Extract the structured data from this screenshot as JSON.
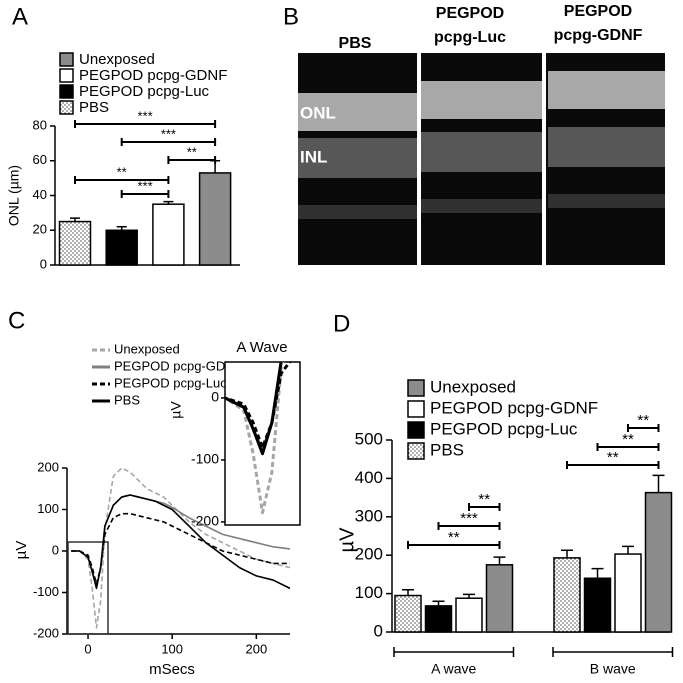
{
  "chart_data": [
    {
      "type": "bar",
      "panel": "A",
      "ylabel": "ONL (µm)",
      "categories": [
        "PBS",
        "PEGPOD pcpg-Luc",
        "PEGPOD pcpg-GDNF",
        "Unexposed"
      ],
      "values": [
        25,
        20,
        35,
        53
      ],
      "errors": [
        2,
        2,
        1.5,
        7
      ],
      "colors": [
        "#ffffff",
        "#000000",
        "#ffffff",
        "#8c8c8c"
      ],
      "dotted": [
        true,
        false,
        false,
        false
      ],
      "ylim": [
        0,
        80
      ],
      "yticks": [
        0,
        20,
        40,
        60,
        80
      ],
      "significance": [
        "***",
        "***",
        "**",
        "**",
        "***"
      ]
    },
    {
      "type": "image",
      "panel": "B",
      "column_labels": [
        "PBS",
        "PEGPOD pcpg-Luc",
        "PEGPOD pcpg-GDNF"
      ],
      "layer_labels": [
        "ONL",
        "INL"
      ]
    },
    {
      "type": "line",
      "panel": "C",
      "xlabel": "mSecs",
      "ylabel": "µV",
      "x": [
        -20,
        -10,
        0,
        5,
        10,
        15,
        20,
        30,
        40,
        50,
        60,
        70,
        80,
        90,
        100,
        120,
        140,
        160,
        180,
        200,
        220,
        240
      ],
      "series": [
        {
          "name": "Unexposed",
          "color": "#a6a6a6",
          "dashed": true,
          "values": [
            0,
            0,
            -20,
            -90,
            -185,
            -120,
            50,
            180,
            200,
            190,
            170,
            150,
            140,
            130,
            110,
            70,
            40,
            20,
            0,
            -20,
            -30,
            -40
          ]
        },
        {
          "name": "PEGPOD pcpg-GDNF",
          "color": "#808080",
          "dashed": false,
          "values": [
            0,
            0,
            -15,
            -50,
            -85,
            -40,
            60,
            110,
            130,
            135,
            130,
            125,
            120,
            115,
            105,
            80,
            60,
            40,
            30,
            20,
            10,
            5
          ]
        },
        {
          "name": "PEGPOD pcpg-Luc",
          "color": "#000000",
          "dashed": true,
          "values": [
            0,
            0,
            -10,
            -40,
            -80,
            -40,
            40,
            80,
            90,
            90,
            85,
            80,
            75,
            70,
            60,
            40,
            20,
            0,
            -10,
            -20,
            -30,
            -30
          ]
        },
        {
          "name": "PBS",
          "color": "#000000",
          "dashed": false,
          "values": [
            0,
            0,
            -15,
            -50,
            -90,
            -40,
            60,
            110,
            130,
            135,
            130,
            125,
            120,
            110,
            100,
            60,
            20,
            -10,
            -40,
            -60,
            -70,
            -90
          ]
        }
      ],
      "xlim": [
        -25,
        240
      ],
      "xticks": [
        0,
        100,
        200
      ],
      "ylim": [
        -200,
        200
      ],
      "yticks": [
        -200,
        -100,
        0,
        100,
        200
      ],
      "inset": {
        "title": "A Wave",
        "ylabel": "µV",
        "xlim": [
          -10,
          30
        ],
        "ylim": [
          -205,
          58
        ],
        "yticks": [
          0,
          -100,
          -200
        ]
      }
    },
    {
      "type": "grouped_bar",
      "panel": "D",
      "ylabel": "µV",
      "categories": [
        "A wave",
        "B wave"
      ],
      "series": [
        {
          "name": "PBS",
          "color": "#ffffff",
          "dotted": true,
          "values": [
            95,
            193
          ],
          "errors": [
            15,
            20
          ]
        },
        {
          "name": "PEGPOD pcpg-Luc",
          "color": "#000000",
          "dotted": false,
          "values": [
            68,
            140
          ],
          "errors": [
            12,
            25
          ]
        },
        {
          "name": "PEGPOD pcpg-GDNF",
          "color": "#ffffff",
          "dotted": false,
          "values": [
            88,
            203
          ],
          "errors": [
            10,
            20
          ]
        },
        {
          "name": "Unexposed",
          "color": "#8c8c8c",
          "dotted": false,
          "values": [
            175,
            363
          ],
          "errors": [
            20,
            45
          ]
        }
      ],
      "ylim": [
        0,
        500
      ],
      "yticks": [
        0,
        100,
        200,
        300,
        400,
        500
      ],
      "significance": [
        "**",
        "***",
        "**",
        "**",
        "**",
        "**"
      ]
    }
  ]
}
